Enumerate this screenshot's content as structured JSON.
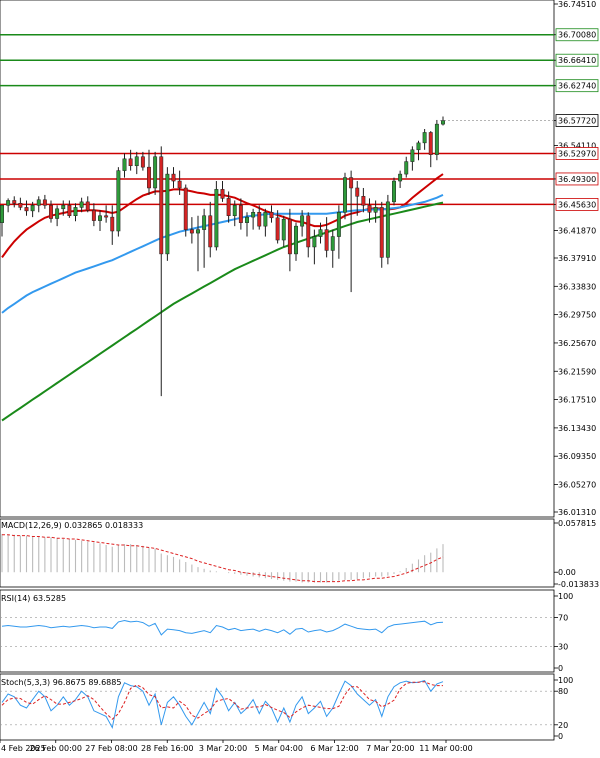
{
  "chart_data": {
    "type": "candlestick",
    "price_axis": {
      "min": 36.0131,
      "max": 36.7451,
      "ticks": [
        "36.74510",
        "36.70080",
        "36.66410",
        "36.62740",
        "36.57720",
        "36.54110",
        "36.52970",
        "36.49300",
        "36.45630",
        "36.41870",
        "36.37910",
        "36.33830",
        "36.29750",
        "36.25670",
        "36.21590",
        "36.17510",
        "36.13430",
        "36.09350",
        "36.05270",
        "36.01310"
      ]
    },
    "horizontal_levels": [
      {
        "value": 36.7008,
        "label": "36.70080",
        "color": "#1a8a1a"
      },
      {
        "value": 36.6641,
        "label": "36.66410",
        "color": "#1a8a1a"
      },
      {
        "value": 36.6274,
        "label": "36.62740",
        "color": "#1a8a1a"
      },
      {
        "value": 36.5297,
        "label": "36.52970",
        "color": "#cc0000"
      },
      {
        "value": 36.493,
        "label": "36.49300",
        "color": "#cc0000"
      },
      {
        "value": 36.4563,
        "label": "36.45630",
        "color": "#cc0000"
      }
    ],
    "current_price": {
      "value": 36.5772,
      "label": "36.57720"
    },
    "time_labels": [
      "4 Feb 2025",
      "26 Feb 00:00",
      "27 Feb 08:00",
      "28 Feb 16:00",
      "3 Mar 20:00",
      "5 Mar 04:00",
      "6 Mar 12:00",
      "7 Mar 20:00",
      "11 Mar 00:00"
    ],
    "candles": [
      [
        36.43,
        36.455,
        36.41,
        36.455
      ],
      [
        36.455,
        36.465,
        36.445,
        36.462
      ],
      [
        36.462,
        36.468,
        36.452,
        36.458
      ],
      [
        36.458,
        36.466,
        36.448,
        36.452
      ],
      [
        36.452,
        36.462,
        36.44,
        36.447
      ],
      [
        36.447,
        36.46,
        36.438,
        36.455
      ],
      [
        36.455,
        36.468,
        36.445,
        36.463
      ],
      [
        36.463,
        36.47,
        36.45,
        36.455
      ],
      [
        36.455,
        36.462,
        36.43,
        36.436
      ],
      [
        36.436,
        36.455,
        36.425,
        36.45
      ],
      [
        36.45,
        36.462,
        36.44,
        36.455
      ],
      [
        36.455,
        36.462,
        36.437,
        36.44
      ],
      [
        36.44,
        36.458,
        36.432,
        36.452
      ],
      [
        36.452,
        36.466,
        36.445,
        36.46
      ],
      [
        36.46,
        36.468,
        36.445,
        36.448
      ],
      [
        36.448,
        36.458,
        36.425,
        36.433
      ],
      [
        36.433,
        36.448,
        36.418,
        36.44
      ],
      [
        36.44,
        36.455,
        36.43,
        36.438
      ],
      [
        36.438,
        36.455,
        36.398,
        36.418
      ],
      [
        36.418,
        36.51,
        36.41,
        36.505
      ],
      [
        36.505,
        36.53,
        36.495,
        36.522
      ],
      [
        36.522,
        36.535,
        36.505,
        36.512
      ],
      [
        36.512,
        36.532,
        36.5,
        36.525
      ],
      [
        36.525,
        36.532,
        36.505,
        36.51
      ],
      [
        36.51,
        36.535,
        36.47,
        36.48
      ],
      [
        36.48,
        36.532,
        36.47,
        36.525
      ],
      [
        36.525,
        36.54,
        36.18,
        36.385
      ],
      [
        36.385,
        36.51,
        36.375,
        36.5
      ],
      [
        36.5,
        36.51,
        36.48,
        36.49
      ],
      [
        36.49,
        36.505,
        36.47,
        36.48
      ],
      [
        36.48,
        36.485,
        36.41,
        36.42
      ],
      [
        36.42,
        36.438,
        36.4,
        36.415
      ],
      [
        36.415,
        36.44,
        36.36,
        36.42
      ],
      [
        36.42,
        36.45,
        36.365,
        36.44
      ],
      [
        36.44,
        36.46,
        36.38,
        36.395
      ],
      [
        36.395,
        36.49,
        36.39,
        36.478
      ],
      [
        36.478,
        36.49,
        36.46,
        36.465
      ],
      [
        36.465,
        36.475,
        36.43,
        36.44
      ],
      [
        36.44,
        36.462,
        36.425,
        36.455
      ],
      [
        36.455,
        36.465,
        36.42,
        36.43
      ],
      [
        36.43,
        36.445,
        36.41,
        36.438
      ],
      [
        36.438,
        36.45,
        36.42,
        36.445
      ],
      [
        36.445,
        36.455,
        36.42,
        36.425
      ],
      [
        36.425,
        36.45,
        36.41,
        36.445
      ],
      [
        36.445,
        36.455,
        36.43,
        36.437
      ],
      [
        36.437,
        36.448,
        36.4,
        36.405
      ],
      [
        36.405,
        36.44,
        36.395,
        36.435
      ],
      [
        36.435,
        36.45,
        36.36,
        36.385
      ],
      [
        36.385,
        36.43,
        36.375,
        36.425
      ],
      [
        36.425,
        36.448,
        36.41,
        36.44
      ],
      [
        36.44,
        36.445,
        36.38,
        36.395
      ],
      [
        36.395,
        36.42,
        36.37,
        36.41
      ],
      [
        36.41,
        36.43,
        36.4,
        36.42
      ],
      [
        36.42,
        36.438,
        36.38,
        36.39
      ],
      [
        36.39,
        36.42,
        36.365,
        36.41
      ],
      [
        36.41,
        36.455,
        36.378,
        36.445
      ],
      [
        36.445,
        36.502,
        36.435,
        36.495
      ],
      [
        36.495,
        36.505,
        36.33,
        36.48
      ],
      [
        36.48,
        36.49,
        36.44,
        36.468
      ],
      [
        36.468,
        36.48,
        36.445,
        36.455
      ],
      [
        36.455,
        36.465,
        36.43,
        36.445
      ],
      [
        36.445,
        36.462,
        36.43,
        36.452
      ],
      [
        36.452,
        36.46,
        36.365,
        36.38
      ],
      [
        36.38,
        36.47,
        36.37,
        36.46
      ],
      [
        36.46,
        36.495,
        36.455,
        36.49
      ],
      [
        36.49,
        36.505,
        36.48,
        36.5
      ],
      [
        36.5,
        36.525,
        36.495,
        36.518
      ],
      [
        36.518,
        36.54,
        36.505,
        36.535
      ],
      [
        36.535,
        36.548,
        36.52,
        36.545
      ],
      [
        36.545,
        36.565,
        36.535,
        36.56
      ],
      [
        36.56,
        36.562,
        36.51,
        36.528
      ],
      [
        36.528,
        36.578,
        36.52,
        36.572
      ],
      [
        36.572,
        36.583,
        36.57,
        36.577
      ]
    ],
    "moving_averages": [
      {
        "color": "#cc0000",
        "values": [
          36.38,
          36.392,
          36.403,
          36.412,
          36.42,
          36.426,
          36.432,
          36.437,
          36.44,
          36.442,
          36.444,
          36.446,
          36.447,
          36.447,
          36.448,
          36.448,
          36.447,
          36.446,
          36.444,
          36.446,
          36.452,
          36.458,
          36.464,
          36.469,
          36.472,
          36.475,
          36.475,
          36.476,
          36.478,
          36.478,
          36.477,
          36.475,
          36.473,
          36.472,
          36.47,
          36.47,
          36.47,
          36.468,
          36.466,
          36.462,
          36.458,
          36.455,
          36.451,
          36.447,
          36.444,
          36.441,
          36.438,
          36.435,
          36.432,
          36.431,
          36.428,
          36.425,
          36.425,
          36.427,
          36.431,
          36.435,
          36.44,
          36.443,
          36.445,
          36.448,
          36.45,
          36.451,
          36.45,
          36.449,
          36.45,
          36.452,
          36.458,
          36.466,
          36.473,
          36.48,
          36.487,
          36.494,
          36.5
        ]
      },
      {
        "color": "#3399ee",
        "values": [
          36.3,
          36.307,
          36.313,
          36.319,
          36.325,
          36.33,
          36.334,
          36.338,
          36.342,
          36.346,
          36.35,
          36.354,
          36.358,
          36.361,
          36.364,
          36.367,
          36.37,
          36.373,
          36.376,
          36.38,
          36.384,
          36.388,
          36.392,
          36.396,
          36.4,
          36.404,
          36.408,
          36.411,
          36.414,
          36.417,
          36.419,
          36.421,
          36.423,
          36.425,
          36.427,
          36.429,
          36.431,
          36.433,
          36.435,
          36.437,
          36.439,
          36.44,
          36.441,
          36.442,
          36.443,
          36.443,
          36.443,
          36.443,
          36.443,
          36.443,
          36.443,
          36.443,
          36.443,
          36.443,
          36.444,
          36.445,
          36.446,
          36.447,
          36.448,
          36.448,
          36.449,
          36.449,
          36.449,
          36.45,
          36.451,
          36.452,
          36.454,
          36.456,
          36.458,
          36.46,
          36.463,
          36.466,
          36.47
        ]
      },
      {
        "color": "#1a8a1a",
        "values": [
          36.145,
          36.151,
          36.157,
          36.163,
          36.169,
          36.175,
          36.181,
          36.187,
          36.193,
          36.199,
          36.205,
          36.211,
          36.217,
          36.223,
          36.229,
          36.235,
          36.241,
          36.247,
          36.253,
          36.259,
          36.265,
          36.271,
          36.277,
          36.283,
          36.289,
          36.295,
          36.301,
          36.307,
          36.313,
          36.318,
          36.323,
          36.328,
          36.333,
          36.338,
          36.343,
          36.348,
          36.353,
          36.358,
          36.363,
          36.367,
          36.371,
          36.375,
          36.379,
          36.383,
          36.387,
          36.391,
          36.395,
          36.398,
          36.401,
          36.404,
          36.407,
          36.41,
          36.413,
          36.416,
          36.419,
          36.422,
          36.425,
          36.428,
          36.431,
          36.433,
          36.435,
          36.437,
          36.439,
          36.441,
          36.443,
          36.445,
          36.447,
          36.449,
          36.451,
          36.453,
          36.455,
          36.457,
          36.459
        ]
      }
    ],
    "macd": {
      "label": "MACD(12,26,9) 0.032865 0.018333",
      "axis_labels": [
        "0.057815",
        "0.00",
        "-0.013833"
      ],
      "axis_max": 0.057815,
      "axis_min": -0.013833,
      "histogram": [
        0.045,
        0.044,
        0.044,
        0.043,
        0.043,
        0.042,
        0.042,
        0.041,
        0.041,
        0.04,
        0.039,
        0.039,
        0.038,
        0.037,
        0.036,
        0.035,
        0.034,
        0.032,
        0.03,
        0.032,
        0.033,
        0.033,
        0.032,
        0.031,
        0.029,
        0.028,
        0.022,
        0.02,
        0.018,
        0.015,
        0.012,
        0.009,
        0.006,
        0.004,
        0.002,
        0.001,
        0.0,
        -0.001,
        -0.002,
        -0.003,
        -0.004,
        -0.005,
        -0.006,
        -0.007,
        -0.008,
        -0.009,
        -0.01,
        -0.011,
        -0.011,
        -0.012,
        -0.012,
        -0.012,
        -0.012,
        -0.012,
        -0.011,
        -0.01,
        -0.009,
        -0.009,
        -0.008,
        -0.007,
        -0.006,
        -0.005,
        -0.005,
        -0.004,
        -0.002,
        0.001,
        0.005,
        0.01,
        0.015,
        0.02,
        0.023,
        0.028,
        0.033
      ],
      "signal": [
        0.044,
        0.044,
        0.043,
        0.043,
        0.043,
        0.042,
        0.042,
        0.041,
        0.041,
        0.04,
        0.04,
        0.039,
        0.039,
        0.038,
        0.037,
        0.036,
        0.035,
        0.034,
        0.033,
        0.032,
        0.032,
        0.031,
        0.031,
        0.03,
        0.029,
        0.028,
        0.026,
        0.024,
        0.022,
        0.02,
        0.018,
        0.016,
        0.013,
        0.011,
        0.009,
        0.007,
        0.005,
        0.003,
        0.002,
        0.0,
        -0.001,
        -0.002,
        -0.003,
        -0.004,
        -0.005,
        -0.006,
        -0.007,
        -0.008,
        -0.009,
        -0.01,
        -0.01,
        -0.011,
        -0.011,
        -0.011,
        -0.011,
        -0.011,
        -0.01,
        -0.01,
        -0.009,
        -0.009,
        -0.008,
        -0.007,
        -0.007,
        -0.006,
        -0.005,
        -0.003,
        -0.001,
        0.002,
        0.005,
        0.008,
        0.011,
        0.015,
        0.018
      ]
    },
    "rsi": {
      "label": "RSI(14) 63.5285",
      "axis_labels": [
        "100",
        "70",
        "30",
        "0"
      ],
      "values": [
        58,
        59,
        58,
        57,
        57,
        58,
        59,
        58,
        56,
        57,
        58,
        57,
        58,
        59,
        58,
        56,
        57,
        57,
        55,
        64,
        66,
        64,
        65,
        63,
        58,
        62,
        46,
        54,
        53,
        52,
        49,
        48,
        50,
        52,
        49,
        59,
        57,
        53,
        55,
        52,
        53,
        54,
        51,
        54,
        52,
        49,
        53,
        47,
        54,
        55,
        50,
        52,
        53,
        50,
        52,
        56,
        61,
        58,
        55,
        54,
        53,
        54,
        49,
        57,
        60,
        61,
        62,
        63,
        64,
        65,
        60,
        63,
        63.5
      ]
    },
    "stoch": {
      "label": "Stoch(5,3,3) 96.8675 89.6885",
      "axis_labels": [
        "100",
        "80",
        "20",
        "0"
      ],
      "k": [
        60,
        75,
        70,
        55,
        50,
        65,
        80,
        70,
        45,
        55,
        70,
        55,
        65,
        80,
        70,
        45,
        40,
        35,
        15,
        70,
        95,
        90,
        88,
        80,
        55,
        75,
        20,
        60,
        70,
        55,
        35,
        20,
        40,
        60,
        40,
        85,
        70,
        45,
        60,
        40,
        50,
        65,
        40,
        62,
        50,
        25,
        50,
        25,
        55,
        70,
        40,
        50,
        62,
        35,
        50,
        75,
        98,
        90,
        75,
        65,
        55,
        65,
        35,
        70,
        88,
        95,
        98,
        95,
        96,
        99,
        80,
        93,
        97
      ],
      "d": [
        55,
        65,
        68,
        67,
        60,
        57,
        65,
        72,
        65,
        57,
        57,
        60,
        63,
        67,
        72,
        65,
        52,
        40,
        30,
        40,
        60,
        85,
        91,
        86,
        74,
        70,
        50,
        52,
        50,
        62,
        54,
        37,
        32,
        40,
        47,
        62,
        65,
        67,
        58,
        48,
        50,
        52,
        52,
        56,
        51,
        46,
        42,
        33,
        43,
        50,
        55,
        53,
        51,
        49,
        49,
        53,
        74,
        88,
        88,
        77,
        65,
        62,
        52,
        57,
        64,
        84,
        94,
        96,
        96,
        97,
        92,
        90,
        90
      ]
    }
  }
}
